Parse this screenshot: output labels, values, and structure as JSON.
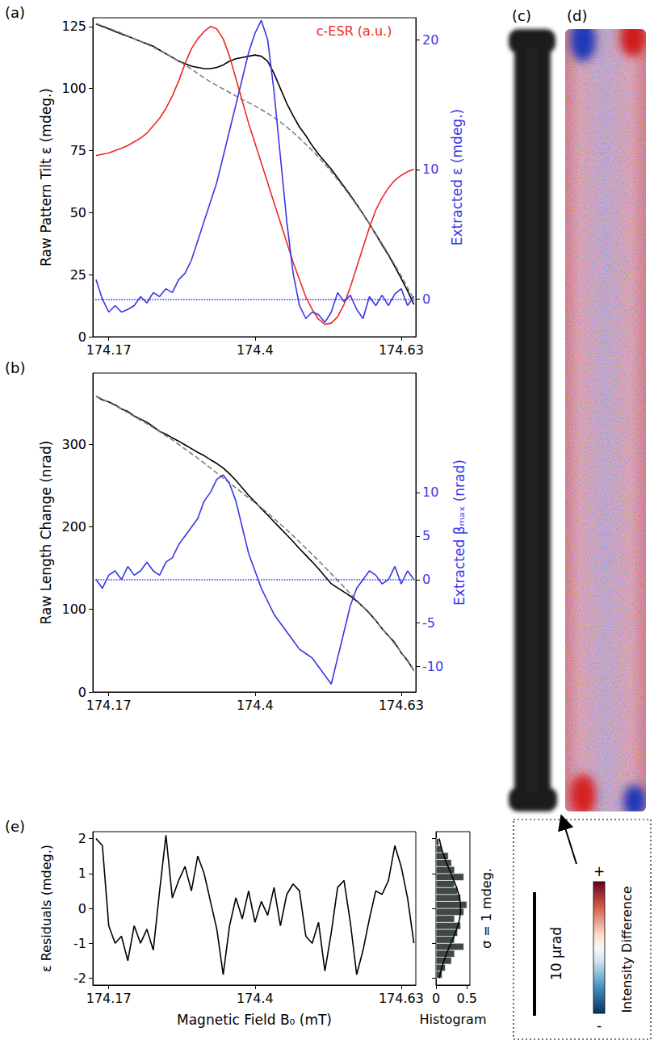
{
  "chart_data": [
    {
      "type": "line",
      "panel_label": "(a)",
      "x": [
        174.15,
        174.16,
        174.17,
        174.18,
        174.19,
        174.2,
        174.21,
        174.22,
        174.23,
        174.24,
        174.25,
        174.26,
        174.27,
        174.28,
        174.29,
        174.3,
        174.31,
        174.32,
        174.33,
        174.34,
        174.35,
        174.36,
        174.37,
        174.38,
        174.39,
        174.4,
        174.41,
        174.42,
        174.43,
        174.44,
        174.45,
        174.46,
        174.47,
        174.48,
        174.49,
        174.5,
        174.51,
        174.52,
        174.53,
        174.54,
        174.55,
        174.56,
        174.57,
        174.58,
        174.59,
        174.6,
        174.61,
        174.62,
        174.63,
        174.64,
        174.65
      ],
      "xlim": [
        174.145,
        174.653
      ],
      "xticks": [
        174.17,
        174.4,
        174.63
      ],
      "ylabel": "Raw Pattern Tilt ε (mdeg.)",
      "ylim": [
        0,
        128.5
      ],
      "yticks": [
        0,
        25,
        50,
        75,
        100,
        125
      ],
      "y2label": "Extracted ε (mdeg.)",
      "y2lim": [
        -2.9,
        21.7
      ],
      "y2ticks": [
        0,
        10,
        20
      ],
      "grid": false,
      "series": [
        {
          "color": "#000000",
          "values": [
            126,
            125,
            124,
            123,
            122,
            121,
            120,
            119,
            118,
            117,
            115.5,
            114,
            112.5,
            111,
            110,
            109,
            108.5,
            108,
            108,
            108.5,
            109.5,
            111,
            112,
            112.5,
            113,
            113.5,
            113,
            111,
            106,
            100,
            94,
            89,
            84.5,
            81,
            77,
            73.5,
            70.5,
            67.5,
            64,
            60.5,
            57,
            53.3,
            49.5,
            45.5,
            41.3,
            37,
            32.8,
            28.3,
            23.5,
            18.5,
            13
          ]
        },
        {
          "color": "#7f7f7f",
          "line_style": "dashed",
          "values": [
            126.2,
            125.3,
            124.3,
            123.3,
            122.3,
            121.2,
            120.1,
            119,
            117.8,
            116.6,
            115.3,
            114,
            112.6,
            111.1,
            109.5,
            107.8,
            106,
            104.3,
            102.7,
            101.2,
            99.8,
            98.4,
            97,
            95.6,
            94.3,
            93,
            91.5,
            90,
            88.3,
            86.5,
            84.5,
            82.3,
            80,
            77.5,
            75,
            72.3,
            69.5,
            66.5,
            63.3,
            60,
            56.5,
            53,
            49.3,
            45.5,
            41.5,
            37.5,
            33.3,
            29,
            24.5,
            19.8,
            15
          ]
        },
        {
          "name": "c-ESR (a.u.)",
          "color": "#ec2a22",
          "values": [
            73,
            73.5,
            74,
            75,
            76,
            77,
            78.5,
            80,
            82,
            85,
            88,
            92,
            97,
            103,
            110,
            116,
            120,
            123,
            125,
            124,
            120,
            113,
            104,
            95,
            86,
            78,
            70,
            62,
            54,
            46,
            38,
            30,
            23,
            16,
            11,
            7,
            5,
            5.5,
            8,
            13,
            20,
            28,
            36,
            44,
            51,
            56,
            60,
            63,
            65,
            66.5,
            67.5
          ]
        },
        {
          "color": "#3737e6",
          "axis": "y2",
          "baseline": 0,
          "values": [
            1.5,
            0,
            -1,
            -0.5,
            -1,
            -0.8,
            -0.5,
            0.2,
            -0.3,
            0.5,
            0.2,
            0.8,
            0.5,
            1.5,
            2,
            3,
            4.5,
            6,
            7.5,
            9,
            11,
            13,
            15,
            17,
            19,
            20.5,
            21.5,
            20,
            16,
            11,
            6,
            2,
            -0.5,
            -1.5,
            -1,
            -1.2,
            -1.8,
            -1,
            0.5,
            -0.2,
            0.3,
            -0.8,
            -1.5,
            0.2,
            -0.5,
            0.3,
            -0.5,
            0.4,
            0.8,
            -0.5,
            0.2
          ]
        }
      ]
    },
    {
      "type": "line",
      "panel_label": "(b)",
      "x": [
        174.15,
        174.16,
        174.17,
        174.18,
        174.19,
        174.2,
        174.21,
        174.22,
        174.23,
        174.24,
        174.25,
        174.26,
        174.27,
        174.28,
        174.29,
        174.3,
        174.31,
        174.32,
        174.33,
        174.34,
        174.35,
        174.36,
        174.37,
        174.38,
        174.39,
        174.4,
        174.41,
        174.42,
        174.43,
        174.44,
        174.45,
        174.46,
        174.47,
        174.48,
        174.49,
        174.5,
        174.51,
        174.52,
        174.53,
        174.54,
        174.55,
        174.56,
        174.57,
        174.58,
        174.59,
        174.6,
        174.61,
        174.62,
        174.63,
        174.64,
        174.65
      ],
      "xlim": [
        174.145,
        174.653
      ],
      "xticks": [
        174.17,
        174.4,
        174.63
      ],
      "ylabel": "Raw Length Change (nrad)",
      "ylim": [
        0,
        386
      ],
      "yticks": [
        0,
        100,
        200,
        300
      ],
      "y2label": "Extracted βₘₐₓ (nrad)",
      "y2lim": [
        -12.9,
        23.7
      ],
      "y2ticks": [
        -10,
        -5,
        0,
        5,
        10
      ],
      "grid": false,
      "series": [
        {
          "color": "#000000",
          "values": [
            358,
            353.5,
            351,
            347.5,
            342.5,
            339.5,
            334,
            330,
            326.5,
            321,
            315.5,
            312,
            307.5,
            303.5,
            299,
            294.5,
            290,
            286,
            281,
            276.5,
            271,
            264,
            256,
            247,
            238,
            230,
            222,
            214,
            206,
            198,
            190,
            182,
            173.5,
            165.5,
            157.5,
            149,
            140,
            131,
            126,
            121,
            116,
            110,
            103,
            95.5,
            86.5,
            76.5,
            68,
            59.5,
            47.5,
            38,
            26
          ]
        },
        {
          "color": "#7f7f7f",
          "line_style": "dashed",
          "values": [
            358,
            354.5,
            350.5,
            346.5,
            342.5,
            338,
            333.5,
            329,
            324.5,
            320,
            315,
            310,
            305,
            299.5,
            294,
            288.5,
            283,
            277,
            271,
            265,
            259,
            253,
            247,
            241,
            235,
            229,
            223,
            216.5,
            210,
            203,
            196,
            189,
            181.5,
            174,
            166.5,
            159,
            151,
            143,
            135,
            127,
            119,
            111,
            103,
            94.5,
            86,
            77,
            68,
            58,
            48,
            37,
            26
          ]
        },
        {
          "color": "#3737e6",
          "axis": "y2",
          "baseline": 0,
          "values": [
            0,
            -1,
            0.5,
            1,
            0,
            1.5,
            0.5,
            1,
            2,
            1,
            0.5,
            2,
            2.5,
            4,
            5,
            6,
            7,
            9,
            10,
            11.5,
            12,
            11,
            9,
            6,
            3,
            1,
            -1,
            -2.5,
            -4,
            -5,
            -6,
            -7,
            -8,
            -8.5,
            -9,
            -10,
            -11,
            -12,
            -9,
            -6,
            -3,
            -1,
            0,
            1,
            0.5,
            -0.5,
            0,
            1.5,
            -0.5,
            1,
            0
          ]
        }
      ]
    },
    {
      "type": "line",
      "panel_label": "(e)",
      "x": [
        174.15,
        174.16,
        174.17,
        174.18,
        174.19,
        174.2,
        174.21,
        174.22,
        174.23,
        174.24,
        174.25,
        174.26,
        174.27,
        174.28,
        174.29,
        174.3,
        174.31,
        174.32,
        174.33,
        174.34,
        174.35,
        174.36,
        174.37,
        174.38,
        174.39,
        174.4,
        174.41,
        174.42,
        174.43,
        174.44,
        174.45,
        174.46,
        174.47,
        174.48,
        174.49,
        174.5,
        174.51,
        174.52,
        174.53,
        174.54,
        174.55,
        174.56,
        174.57,
        174.58,
        174.59,
        174.6,
        174.61,
        174.62,
        174.63,
        174.64,
        174.65
      ],
      "xlabel": "Magnetic Field B₀ (mT)",
      "xlim": [
        174.145,
        174.653
      ],
      "xticks": [
        174.17,
        174.4,
        174.63
      ],
      "ylabel": "ε Residuals (mdeg.)",
      "ylim": [
        -2.2,
        2.2
      ],
      "yticks": [
        -2,
        -1,
        0,
        1,
        2
      ],
      "grid": false,
      "series": [
        {
          "color": "#000000",
          "values": [
            2,
            1.8,
            -0.5,
            -1,
            -0.8,
            -1.5,
            -0.5,
            -1,
            -0.6,
            -1.2,
            0.5,
            2.1,
            0.3,
            0.8,
            1.2,
            0.5,
            1.5,
            1,
            0.2,
            -0.6,
            -1.9,
            -0.5,
            0.3,
            -0.3,
            0.5,
            -0.4,
            0.2,
            -0.2,
            0.6,
            -0.5,
            0.4,
            0.7,
            0.5,
            -0.8,
            -1,
            -0.4,
            -1.8,
            -0.7,
            0.6,
            0.8,
            -0.4,
            -1.9,
            -1.2,
            -0.3,
            0.5,
            0.4,
            0.8,
            1.8,
            1.2,
            0.3,
            -1
          ]
        }
      ]
    },
    {
      "type": "histogram",
      "orientation": "horizontal",
      "xlabel": "Histogram",
      "bins": [
        -2,
        -1.8,
        -1.6,
        -1.4,
        -1.2,
        -1,
        -0.8,
        -0.6,
        -0.4,
        -0.2,
        0,
        0.2,
        0.4,
        0.6,
        0.8,
        1,
        1.2,
        1.4,
        1.6,
        1.8,
        2
      ],
      "values": [
        0.1,
        0.15,
        0.25,
        0.3,
        0.45,
        0.3,
        0.35,
        0.4,
        0.3,
        0.45,
        0.5,
        0.4,
        0.35,
        0.3,
        0.45,
        0.3,
        0.25,
        0.2,
        0.1,
        0.05
      ],
      "color": "#3f4747",
      "xlim": [
        0,
        0.55
      ],
      "xticks": [
        0,
        0.5
      ],
      "ylim": [
        -2.2,
        2.2
      ],
      "yticks": [
        -2,
        -1,
        0,
        1,
        2
      ],
      "tick_labels": "x",
      "grid": false,
      "fit": {
        "color": "#000000",
        "y": [
          -2,
          -1.75,
          -1.5,
          -1.25,
          -1,
          -0.75,
          -0.5,
          -0.25,
          0,
          0.25,
          0.5,
          0.75,
          1,
          1.25,
          1.5,
          1.75,
          2
        ],
        "x": [
          0.054,
          0.086,
          0.13,
          0.183,
          0.242,
          0.301,
          0.352,
          0.387,
          0.399,
          0.387,
          0.352,
          0.301,
          0.242,
          0.183,
          0.13,
          0.086,
          0.054
        ]
      },
      "annotation": "σ = 1 mdeg."
    }
  ],
  "images": {
    "c": {
      "panel_label": "(c)"
    },
    "d": {
      "panel_label": "(d)"
    },
    "scale_bar": {
      "label": "10 µrad"
    },
    "colorbar": {
      "title": "Intensity Difference",
      "max_label": "+",
      "min_label": "-"
    }
  }
}
